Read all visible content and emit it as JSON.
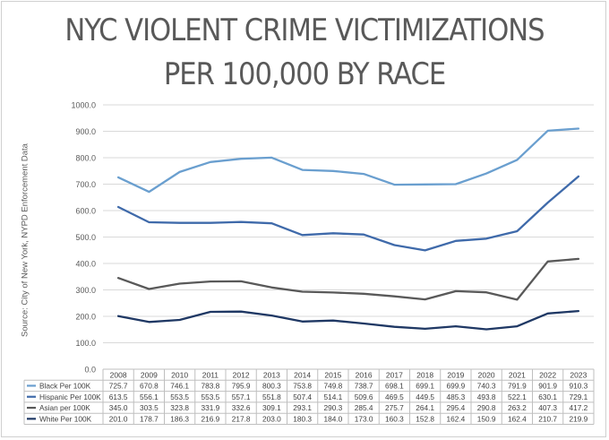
{
  "title_line1": "NYC VIOLENT CRIME VICTIMIZATIONS",
  "title_line2": "PER 100,000 BY RACE",
  "source_note": "Source:  City of New York,  NYPD  Enforcement Data",
  "chart_data": {
    "type": "line",
    "categories": [
      "2008",
      "2009",
      "2010",
      "2011",
      "2012",
      "2013",
      "2014",
      "2015",
      "2016",
      "2017",
      "2018",
      "2019",
      "2020",
      "2021",
      "2022",
      "2023"
    ],
    "ylim": [
      0,
      1000
    ],
    "yticks": [
      "0.0",
      "100.0",
      "200.0",
      "300.0",
      "400.0",
      "500.0",
      "600.0",
      "700.0",
      "800.0",
      "900.0",
      "1000.0"
    ],
    "grid": true,
    "legend": "data-table-below",
    "series": [
      {
        "name": "Black Per 100K",
        "color": "#6a9fcf",
        "values": [
          725.7,
          670.8,
          746.1,
          783.8,
          795.9,
          800.3,
          753.8,
          749.8,
          738.7,
          698.1,
          699.1,
          699.9,
          740.3,
          791.9,
          901.9,
          910.3
        ],
        "labels": [
          "725.7",
          "670.8",
          "746.1",
          "783.8",
          "795.9",
          "800.3",
          "753.8",
          "749.8",
          "738.7",
          "698.1",
          "699.1",
          "699.9",
          "740.3",
          "791.9",
          "901.9",
          "910.3"
        ]
      },
      {
        "name": "Hispanic Per 100K",
        "color": "#3f6aaa",
        "values": [
          613.5,
          556.1,
          553.5,
          553.5,
          557.1,
          551.8,
          507.4,
          514.1,
          509.6,
          469.5,
          449.5,
          485.3,
          493.8,
          522.1,
          630.1,
          729.1
        ],
        "labels": [
          "613.5",
          "556.1",
          "553.5",
          "553.5",
          "557.1",
          "551.8",
          "507.4",
          "514.1",
          "509.6",
          "469.5",
          "449.5",
          "485.3",
          "493.8",
          "522.1",
          "630.1",
          "729.1"
        ]
      },
      {
        "name": "Asian per 100K",
        "color": "#595959",
        "values": [
          345.0,
          303.5,
          323.8,
          331.9,
          332.6,
          309.1,
          293.1,
          290.3,
          285.4,
          275.7,
          264.1,
          295.4,
          290.8,
          263.2,
          407.3,
          417.2
        ],
        "labels": [
          "345.0",
          "303.5",
          "323.8",
          "331.9",
          "332.6",
          "309.1",
          "293.1",
          "290.3",
          "285.4",
          "275.7",
          "264.1",
          "295.4",
          "290.8",
          "263.2",
          "407.3",
          "417.2"
        ]
      },
      {
        "name": "White Per 100K",
        "color": "#1f3864",
        "values": [
          201.0,
          178.7,
          186.3,
          216.9,
          217.8,
          203.0,
          180.3,
          184.0,
          173.0,
          160.3,
          152.8,
          162.4,
          150.9,
          162.4,
          210.7,
          219.9
        ],
        "labels": [
          "201.0",
          "178.7",
          "186.3",
          "216.9",
          "217.8",
          "203.0",
          "180.3",
          "184.0",
          "173.0",
          "160.3",
          "152.8",
          "162.4",
          "150.9",
          "162.4",
          "210.7",
          "219.9"
        ]
      }
    ]
  }
}
